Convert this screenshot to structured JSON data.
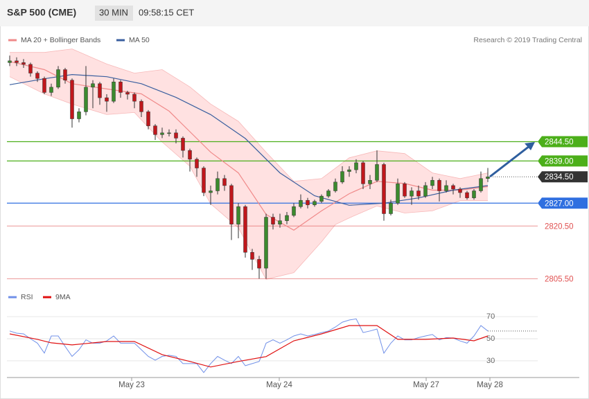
{
  "header": {
    "title": "S&P 500 (CME)",
    "interval": "30 MIN",
    "time": "09:58:15 CET",
    "credit": "Research © 2019 Trading Central"
  },
  "chart_data": [
    {
      "type": "candlestick",
      "xlim": [
        -0.4,
        76.2
      ],
      "ylim": [
        2803,
        2872
      ],
      "up_color": "#3c8a2e",
      "down_color": "#c0171c",
      "ohlc": {
        "open": [
          2867,
          2867.5,
          2867,
          2866.5,
          2864,
          2862.5,
          2858.5,
          2860,
          2865,
          2862,
          2851,
          2853,
          2860,
          2861,
          2857,
          2856,
          2861.5,
          2858.5,
          2858,
          2856,
          2853,
          2849,
          2846.5,
          2847,
          2847,
          2845.5,
          2842,
          2839.5,
          2837,
          2830,
          2830.5,
          2834,
          2832,
          2821,
          2826,
          2813,
          2811,
          2808.5,
          2823,
          2821,
          2822,
          2823.5,
          2826,
          2827.8,
          2826.5,
          2827.5,
          2829,
          2830.5,
          2833,
          2836,
          2836.5,
          2838.5,
          2832.5,
          2833.5,
          2838,
          2824,
          2827,
          2832.5,
          2829,
          2830.5,
          2829,
          2832,
          2833.5,
          2830.5,
          2832,
          2831,
          2830,
          2828.5,
          2830.5,
          2834
        ],
        "high": [
          2869,
          2868.5,
          2868,
          2867,
          2864.5,
          2863,
          2861,
          2866,
          2865.5,
          2862.5,
          2854,
          2866,
          2862,
          2861.5,
          2858,
          2862.5,
          2862,
          2859,
          2858.5,
          2856.5,
          2853.5,
          2849.5,
          2848.5,
          2848,
          2848,
          2846,
          2842.5,
          2840,
          2837.5,
          2832,
          2836,
          2835,
          2832.5,
          2827,
          2826.5,
          2814,
          2812,
          2824,
          2824,
          2824,
          2824.5,
          2827,
          2829.5,
          2828.5,
          2828,
          2829.5,
          2831,
          2834,
          2837.5,
          2837.5,
          2839.5,
          2839,
          2835,
          2842,
          2838.5,
          2828,
          2834,
          2833,
          2831.5,
          2832,
          2833,
          2834.5,
          2834,
          2833.5,
          2832.5,
          2831.5,
          2830.5,
          2831,
          2836,
          2837
        ],
        "low": [
          2866,
          2866,
          2865.5,
          2863,
          2861.5,
          2858,
          2857.5,
          2859.5,
          2861,
          2848.5,
          2850,
          2852,
          2854,
          2855,
          2853,
          2855.5,
          2857,
          2856.5,
          2854,
          2851.5,
          2848,
          2845,
          2845.5,
          2846,
          2844,
          2840,
          2836,
          2834.5,
          2829,
          2826.5,
          2829.5,
          2830.5,
          2816.5,
          2817,
          2811.5,
          2808,
          2805.5,
          2805.5,
          2819.5,
          2820,
          2821,
          2823,
          2825.5,
          2825.5,
          2826,
          2827,
          2828.5,
          2830,
          2832.5,
          2834.5,
          2835.5,
          2831,
          2831,
          2833,
          2822,
          2823.5,
          2826.5,
          2828.5,
          2826.5,
          2828,
          2828.5,
          2831,
          2827.5,
          2830,
          2829.5,
          2828.5,
          2828,
          2828,
          2830,
          2833
        ],
        "close": [
          2867.5,
          2867,
          2866.5,
          2864,
          2862.5,
          2858.5,
          2860,
          2865,
          2862,
          2851,
          2853,
          2860,
          2861,
          2857,
          2856,
          2861.5,
          2858.5,
          2858,
          2856,
          2853,
          2849,
          2846.5,
          2847,
          2847,
          2845.5,
          2842,
          2839.5,
          2837,
          2830,
          2830.5,
          2834,
          2832,
          2821,
          2826,
          2813,
          2811,
          2808.5,
          2823,
          2821,
          2822,
          2823.5,
          2826,
          2827.8,
          2826.5,
          2827.5,
          2829,
          2830.5,
          2833,
          2836,
          2836.5,
          2838.5,
          2832.5,
          2833.5,
          2838,
          2824,
          2827,
          2832.5,
          2829,
          2830.5,
          2829,
          2832,
          2833.5,
          2830.5,
          2832,
          2831,
          2830,
          2828.5,
          2830.5,
          2834,
          2834.5
        ]
      },
      "bands": {
        "color": "#ffd9d9",
        "upper": {
          "x": [
            0,
            5,
            9,
            14,
            18,
            22,
            26,
            29,
            33,
            37,
            41,
            45,
            49,
            53,
            57,
            61,
            65,
            69
          ],
          "values": [
            2869.9,
            2869.9,
            2870.9,
            2866.6,
            2864,
            2865,
            2860.1,
            2855.2,
            2850.3,
            2841.5,
            2833.2,
            2834,
            2839.9,
            2841.9,
            2841.1,
            2835.6,
            2834,
            2835.6
          ]
        },
        "lower": {
          "x": [
            0,
            5,
            9,
            14,
            18,
            22,
            26,
            29,
            33,
            37,
            41,
            45,
            47,
            49,
            53,
            57,
            61,
            65,
            69
          ],
          "values": [
            2863,
            2858.1,
            2855.2,
            2852.2,
            2852.8,
            2844.4,
            2837.5,
            2826.8,
            2820,
            2805.3,
            2807.2,
            2816,
            2820.9,
            2822.8,
            2826.2,
            2824.2,
            2824.8,
            2827.7,
            2827.7
          ]
        }
      },
      "series": [
        {
          "name": "MA 20 + Bollinger Bands",
          "color": "#f08a8a",
          "x": [
            0,
            5,
            9,
            14,
            19,
            23,
            29,
            33,
            37,
            41,
            45,
            49,
            53,
            57,
            61,
            65,
            69
          ],
          "values": [
            2867.3,
            2865,
            2861,
            2859.5,
            2858.1,
            2853.2,
            2841.5,
            2835.6,
            2823.8,
            2819.3,
            2824.8,
            2829.7,
            2833.2,
            2832.6,
            2830.7,
            2830.7,
            2831.7
          ]
        },
        {
          "name": "MA 50",
          "color": "#3a5f9f",
          "x": [
            0,
            5,
            9,
            14,
            19,
            24,
            29,
            34,
            39,
            44,
            49,
            54,
            59,
            64,
            69
          ],
          "values": [
            2860.7,
            2862.4,
            2863.6,
            2863,
            2861,
            2857.1,
            2852.2,
            2845.4,
            2835.6,
            2829.1,
            2826.4,
            2827,
            2828.5,
            2830.7,
            2832
          ]
        }
      ],
      "levels": [
        {
          "value": 2844.5,
          "label": "2844.50",
          "color": "#4caf1a",
          "filled": true
        },
        {
          "value": 2839,
          "label": "2839.00",
          "color": "#4caf1a",
          "filled": true
        },
        {
          "value": 2834.5,
          "label": "2834.50",
          "color": "#333333",
          "filled": true,
          "dotted": true
        },
        {
          "value": 2827,
          "label": "2827.00",
          "color": "#2f6fe0",
          "filled": true
        },
        {
          "value": 2820.5,
          "label": "2820.50",
          "color": "#e05050",
          "filled": false
        },
        {
          "value": 2805.5,
          "label": "2805.50",
          "color": "#e05050",
          "filled": false
        }
      ]
    },
    {
      "type": "line",
      "xlim": [
        -0.4,
        76.2
      ],
      "ylim": [
        18,
        87
      ],
      "yticks": [
        30,
        50,
        70
      ],
      "xticks": [
        {
          "value": 17.6,
          "label": "May 23"
        },
        {
          "value": 38.9,
          "label": "May 24"
        },
        {
          "value": 60.1,
          "label": "May 27"
        },
        {
          "value": 69.3,
          "label": "May 28"
        }
      ],
      "series": [
        {
          "name": "RSI",
          "color": "#7090e8",
          "values": [
            57,
            55,
            54.4,
            50,
            46,
            37,
            52.5,
            52.5,
            43,
            34,
            40,
            49,
            46,
            46,
            48,
            52.5,
            46,
            46,
            46,
            40,
            34,
            30.6,
            34,
            35,
            34,
            27.5,
            27.5,
            27.5,
            19.4,
            27.5,
            34,
            30.6,
            27.5,
            34,
            25.6,
            27.5,
            29.4,
            46,
            49,
            46,
            49,
            52.5,
            54.4,
            52.5,
            53.8,
            55.6,
            57,
            60.6,
            65,
            66.9,
            68,
            55.6,
            57,
            58.8,
            36.9,
            46,
            52.5,
            49,
            49,
            51,
            52.5,
            53.8,
            49,
            51,
            50.6,
            48,
            46,
            52.5,
            61.9,
            57
          ]
        },
        {
          "name": "9MA",
          "color": "#e01010",
          "x": [
            0,
            4,
            6,
            9,
            14,
            18,
            22,
            26,
            29,
            33,
            37,
            41,
            45,
            49,
            53,
            56,
            60,
            64,
            67,
            69
          ],
          "values": [
            54.4,
            49.4,
            46.3,
            44.4,
            47.5,
            47.5,
            35.6,
            29.4,
            24.4,
            29.4,
            33.8,
            48.1,
            54.4,
            61.9,
            61.9,
            49.4,
            49.4,
            50.6,
            48.1,
            52.5
          ]
        }
      ]
    }
  ]
}
